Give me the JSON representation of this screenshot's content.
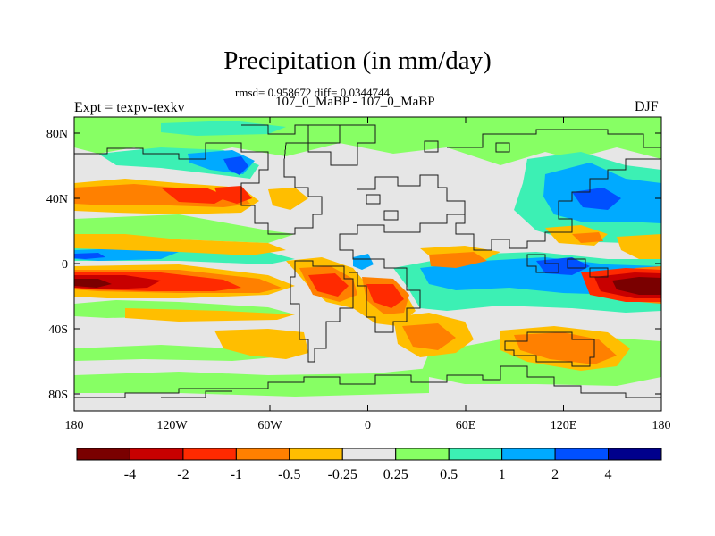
{
  "figure": {
    "title": "Precipitation (in mm/day)",
    "stats": "rmsd= 0.958672 diff= 0.0344744",
    "subtitle": "107_0_MaBP - 107_0_MaBP",
    "left_label": "Expt = texpv-texkv",
    "right_label": "DJF"
  },
  "map": {
    "lat_ticks": [
      "80N",
      "40N",
      "0",
      "40S",
      "80S"
    ],
    "lon_ticks": [
      "180",
      "120W",
      "60W",
      "0",
      "60E",
      "120E",
      "180"
    ]
  },
  "colorbar": {
    "colors": [
      "#7a0000",
      "#c80000",
      "#ff2a00",
      "#ff8000",
      "#ffbe00",
      "#e6e6e6",
      "#87ff64",
      "#3cf0b4",
      "#00aaff",
      "#0050ff",
      "#00008c"
    ],
    "labels": [
      "-4",
      "-2",
      "-1",
      "-0.5",
      "-0.25",
      "0.25",
      "0.5",
      "1",
      "2",
      "4"
    ]
  },
  "colors": {
    "land_outline": "#1a1a1a",
    "background_class": "#e6e6e6"
  }
}
